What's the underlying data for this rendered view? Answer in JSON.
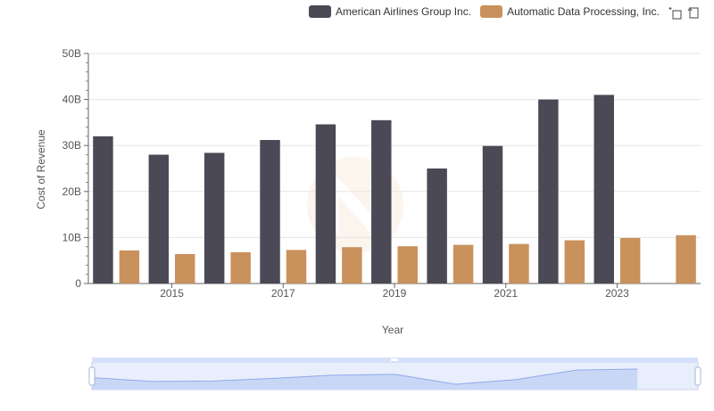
{
  "chart_data": {
    "type": "bar",
    "categories": [
      "2014",
      "2015",
      "2016",
      "2017",
      "2018",
      "2019",
      "2020",
      "2021",
      "2022",
      "2023",
      "2024"
    ],
    "series": [
      {
        "name": "American Airlines Group Inc.",
        "color": "#4a4955",
        "values": [
          32.0,
          28.0,
          28.4,
          31.2,
          34.6,
          35.5,
          25.0,
          29.9,
          40.0,
          41.0,
          null
        ]
      },
      {
        "name": "Automatic Data Processing, Inc.",
        "color": "#c9915c",
        "values": [
          7.2,
          6.4,
          6.8,
          7.3,
          7.9,
          8.1,
          8.4,
          8.6,
          9.4,
          9.9,
          10.5
        ]
      }
    ],
    "xlabel": "Year",
    "ylabel": "Cost of Revenue",
    "ylim": [
      0,
      50
    ],
    "yticks": [
      "0",
      "10B",
      "20B",
      "30B",
      "40B",
      "50B"
    ],
    "xticks": [
      "2015",
      "2017",
      "2019",
      "2021",
      "2023"
    ],
    "legend_position": "top-right",
    "grid": true,
    "zoom_slider": {
      "range": [
        0,
        1
      ],
      "color": "#b9c8f5"
    }
  }
}
